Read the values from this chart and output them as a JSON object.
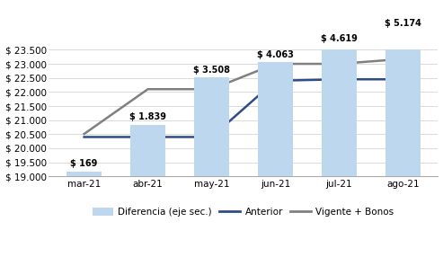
{
  "categories": [
    "mar-21",
    "abr-21",
    "may-21",
    "jun-21",
    "jul-21",
    "ago-21"
  ],
  "bar_values": [
    169,
    1839,
    3508,
    4063,
    4619,
    5174
  ],
  "bar_labels": [
    "$ 169",
    "$ 1.839",
    "$ 3.508",
    "$ 4.063",
    "$ 4.619",
    "$ 5.174"
  ],
  "anterior": [
    20400,
    20400,
    20400,
    22400,
    22450,
    22450
  ],
  "vigente": [
    20510,
    22100,
    22100,
    23000,
    23000,
    23174
  ],
  "bar_color": "#BDD7EE",
  "anterior_color": "#2E4B8A",
  "vigente_color": "#808080",
  "ylim_left": [
    19000,
    23500
  ],
  "ylim_right": [
    0,
    4500
  ],
  "yticks_left": [
    19000,
    19500,
    20000,
    20500,
    21000,
    21500,
    22000,
    22500,
    23000,
    23500
  ],
  "background_color": "#FFFFFF",
  "legend_labels": [
    "Diferencia (eje sec.)",
    "Anterior",
    "Vigente + Bonos"
  ],
  "anterior_lw": 1.8,
  "vigente_lw": 1.8,
  "bar_width": 0.55,
  "label_fontsize": 7,
  "tick_fontsize": 7.5
}
